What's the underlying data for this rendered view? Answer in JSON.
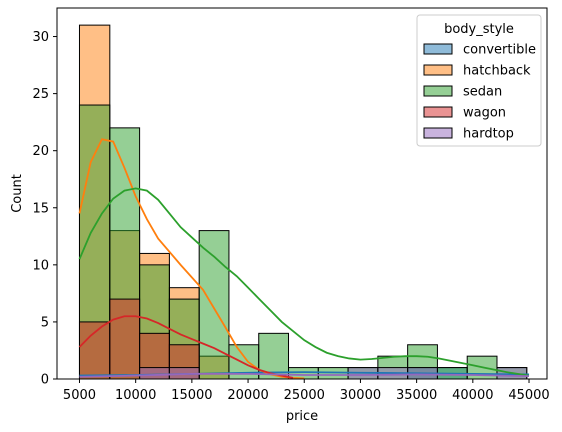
{
  "chart_data": {
    "type": "bar",
    "subtype": "overlaid-histogram-with-kde",
    "title": "",
    "xlabel": "price",
    "ylabel": "Count",
    "xlim": [
      3000,
      46600
    ],
    "ylim": [
      0,
      32.5
    ],
    "xticks": [
      5000,
      10000,
      15000,
      20000,
      25000,
      30000,
      35000,
      40000,
      45000
    ],
    "yticks": [
      0,
      5,
      10,
      15,
      20,
      25,
      30
    ],
    "bin_edges": [
      5000,
      7700,
      10350,
      13000,
      15650,
      18300,
      20950,
      23600,
      26250,
      28900,
      31550,
      34200,
      36850,
      39500,
      42150,
      44800
    ],
    "grid": false,
    "legend": {
      "title": "body_style",
      "placement": "top-right",
      "entries": [
        "convertible",
        "hatchback",
        "sedan",
        "wagon",
        "hardtop"
      ]
    },
    "series": [
      {
        "name": "convertible",
        "color": "#1f77b4",
        "values": [
          0,
          0,
          0,
          0,
          0,
          0,
          0,
          0,
          0,
          0,
          0,
          1,
          1,
          0,
          0
        ],
        "kde_x": [
          5000,
          10000,
          15000,
          20000,
          25000,
          30000,
          35000,
          40000,
          45000
        ],
        "kde_y": [
          0.3,
          0.35,
          0.45,
          0.55,
          0.6,
          0.55,
          0.5,
          0.45,
          0.4
        ]
      },
      {
        "name": "hatchback",
        "color": "#ff7f0e",
        "values": [
          31,
          13,
          11,
          8,
          2,
          0,
          0,
          0,
          0,
          0,
          0,
          0,
          0,
          0,
          0
        ],
        "kde_x": [
          5000,
          6000,
          7000,
          8000,
          9000,
          10000,
          11000,
          12000,
          14000,
          16000,
          18000,
          19000,
          20000,
          21000,
          22000,
          23000,
          24000,
          25000
        ],
        "kde_y": [
          14.5,
          19.0,
          21.0,
          20.8,
          18.5,
          16.0,
          14.0,
          12.3,
          10.0,
          7.8,
          4.5,
          2.8,
          1.5,
          0.8,
          0.4,
          0.2,
          0.1,
          0.05
        ]
      },
      {
        "name": "sedan",
        "color": "#2ca02c",
        "values": [
          24,
          22,
          10,
          7,
          13,
          3,
          4,
          1,
          1,
          1,
          2,
          3,
          1,
          2,
          1
        ],
        "kde_x": [
          5000,
          6000,
          7000,
          8000,
          9000,
          10000,
          11000,
          12000,
          13000,
          14000,
          15000,
          16000,
          17000,
          18000,
          19000,
          20000,
          21000,
          22000,
          23000,
          24000,
          25000,
          26000,
          27000,
          28000,
          29000,
          30000,
          31000,
          32000,
          33000,
          34000,
          35000,
          36000,
          37000,
          38000,
          39000,
          40000,
          41000,
          42000,
          43000,
          44000,
          45000
        ],
        "kde_y": [
          10.5,
          12.8,
          14.5,
          15.8,
          16.5,
          16.7,
          16.5,
          15.7,
          14.5,
          13.3,
          12.4,
          11.5,
          10.7,
          9.8,
          9.0,
          8.0,
          7.0,
          6.0,
          5.0,
          4.2,
          3.4,
          2.8,
          2.3,
          2.0,
          1.8,
          1.7,
          1.75,
          1.85,
          1.95,
          2.0,
          2.0,
          1.95,
          1.8,
          1.6,
          1.4,
          1.2,
          1.0,
          0.8,
          0.6,
          0.45,
          0.3
        ]
      },
      {
        "name": "wagon",
        "color": "#d62728",
        "values": [
          5,
          7,
          4,
          3,
          0,
          0,
          0,
          0,
          0,
          0,
          0,
          0,
          0,
          0,
          0
        ],
        "kde_x": [
          5000,
          6000,
          7000,
          8000,
          9000,
          10000,
          11000,
          12000,
          13000,
          14000,
          15000,
          16000,
          17000,
          18000,
          19000,
          20000,
          21000,
          22000,
          23000,
          24000
        ],
        "kde_y": [
          2.8,
          3.8,
          4.6,
          5.2,
          5.5,
          5.5,
          5.3,
          4.9,
          4.4,
          3.9,
          3.5,
          3.1,
          2.7,
          2.2,
          1.7,
          1.2,
          0.8,
          0.5,
          0.3,
          0.1
        ]
      },
      {
        "name": "hardtop",
        "color": "#9467bd",
        "values": [
          0,
          0,
          1,
          1,
          0,
          0,
          0,
          0,
          0,
          1,
          1,
          1,
          0,
          0,
          1
        ],
        "kde_x": [
          5000,
          10000,
          15000,
          20000,
          25000,
          30000,
          35000,
          40000,
          45000
        ],
        "kde_y": [
          0.2,
          0.3,
          0.45,
          0.45,
          0.35,
          0.35,
          0.4,
          0.35,
          0.25
        ]
      }
    ]
  }
}
